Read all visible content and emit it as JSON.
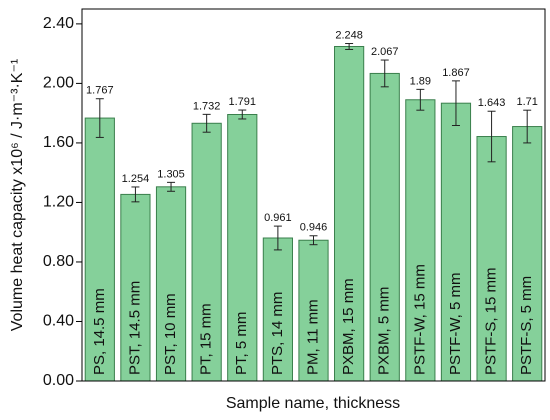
{
  "chart_data": {
    "type": "bar",
    "y_label": "Volume heat capacity x10⁶ / J·m⁻³·K⁻¹",
    "x_label": "Sample name, thickness",
    "categories": [
      "PS, 14.5 mm",
      "PST, 14.5 mm",
      "PST, 10 mm",
      "PT, 15 mm",
      "PT, 5 mm",
      "PTS, 14 mm",
      "PM, 11 mm",
      "PXBM, 15 mm",
      "PXBM, 5 mm",
      "PSTF-W, 15 mm",
      "PSTF-W, 5 mm",
      "PSTF-S, 15 mm",
      "PSTF-S, 5 mm"
    ],
    "values": [
      1.767,
      1.254,
      1.305,
      1.732,
      1.791,
      0.961,
      0.946,
      2.248,
      2.067,
      1.89,
      1.867,
      1.643,
      1.71
    ],
    "errors": [
      0.13,
      0.05,
      0.03,
      0.06,
      0.03,
      0.08,
      0.03,
      0.02,
      0.09,
      0.07,
      0.15,
      0.17,
      0.11
    ],
    "color": "#85d09a",
    "edge_color": "#3a7f4c",
    "ylim": [
      0,
      2.5
    ],
    "yticks": [
      {
        "value": 0,
        "label": "0.00"
      },
      {
        "value": 0.4,
        "label": "0.40"
      },
      {
        "value": 0.8,
        "label": "0.80"
      },
      {
        "value": 1.2,
        "label": "1.20"
      },
      {
        "value": 1.6,
        "label": "1.60"
      },
      {
        "value": 2.0,
        "label": "2.00"
      },
      {
        "value": 2.4,
        "label": "2.40"
      }
    ]
  }
}
